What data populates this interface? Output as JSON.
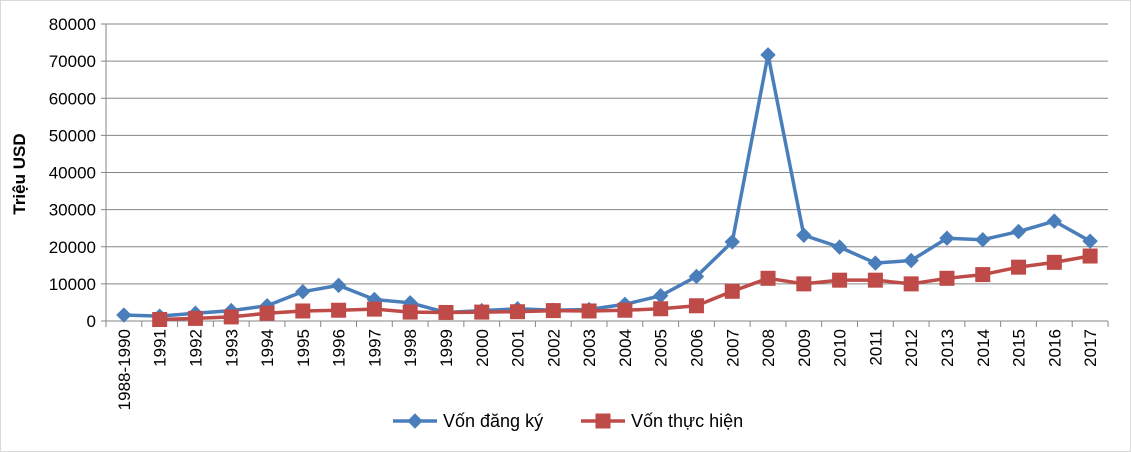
{
  "chart_data": {
    "type": "line",
    "title": "",
    "xlabel": "",
    "ylabel": "Triệu USD",
    "ylim": [
      0,
      80000
    ],
    "yticks": [
      0,
      10000,
      20000,
      30000,
      40000,
      50000,
      60000,
      70000,
      80000
    ],
    "grid": "horizontal",
    "legend_position": "bottom",
    "categories": [
      "1988-1990",
      "1991",
      "1992",
      "1993",
      "1994",
      "1995",
      "1996",
      "1997",
      "1998",
      "1999",
      "2000",
      "2001",
      "2002",
      "2003",
      "2004",
      "2005",
      "2006",
      "2007",
      "2008",
      "2009",
      "2010",
      "2011",
      "2012",
      "2013",
      "2014",
      "2015",
      "2016",
      "2017"
    ],
    "series": [
      {
        "name": "Vốn đăng ký",
        "color": "#4a7ebb",
        "marker": "diamond",
        "values": [
          1600,
          1300,
          2100,
          2800,
          4100,
          7900,
          9600,
          5800,
          4900,
          2300,
          2800,
          3300,
          2900,
          3100,
          4500,
          6800,
          12000,
          21300,
          71700,
          23100,
          19900,
          15600,
          16300,
          22300,
          21900,
          24100,
          26900,
          21500
        ]
      },
      {
        "name": "Vốn thực hiện",
        "color": "#be4b48",
        "marker": "square",
        "values": [
          null,
          400,
          700,
          1100,
          2100,
          2700,
          2900,
          3200,
          2400,
          2300,
          2400,
          2500,
          2800,
          2700,
          2900,
          3300,
          4100,
          8000,
          11500,
          10000,
          11000,
          11000,
          10000,
          11500,
          12500,
          14500,
          15800,
          17500
        ]
      }
    ]
  }
}
